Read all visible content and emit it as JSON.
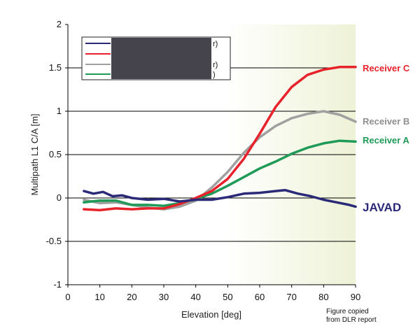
{
  "chart_data": {
    "type": "line",
    "title": "",
    "xlabel": "Elevation [deg]",
    "ylabel": "Multipath L1 C/A [m]",
    "xlim": [
      0,
      90
    ],
    "ylim": [
      -1,
      2
    ],
    "xticks": [
      0,
      10,
      20,
      30,
      40,
      50,
      60,
      70,
      80,
      90
    ],
    "yticks": [
      2,
      1.5,
      1,
      0.5,
      0,
      -0.5,
      -1
    ],
    "ytick_labels": [
      "2",
      "1.5",
      "1",
      "0.5",
      "0",
      "-0.5",
      "-1"
    ],
    "grid": "horizontal",
    "background_gradient": "#eef2d6",
    "legend": {
      "placement": "top-left",
      "visible_fragments": [
        "r)",
        "r)",
        ")"
      ],
      "redacted": true
    },
    "series": [
      {
        "name": "JAVAD",
        "color": "#2b2a78",
        "x": [
          5,
          8,
          11,
          14,
          17,
          20,
          25,
          30,
          35,
          40,
          45,
          50,
          55,
          60,
          65,
          68,
          72,
          76,
          80,
          84,
          88,
          90
        ],
        "y": [
          0.08,
          0.05,
          0.07,
          0.02,
          0.03,
          0.0,
          -0.02,
          -0.01,
          -0.04,
          -0.02,
          -0.02,
          0.01,
          0.05,
          0.06,
          0.08,
          0.09,
          0.05,
          0.02,
          -0.02,
          -0.05,
          -0.08,
          -0.1
        ]
      },
      {
        "name": "Receiver C",
        "color": "#e8222b",
        "x": [
          5,
          10,
          15,
          20,
          25,
          30,
          35,
          40,
          45,
          50,
          55,
          60,
          65,
          70,
          75,
          80,
          85,
          90
        ],
        "y": [
          -0.13,
          -0.14,
          -0.12,
          -0.13,
          -0.12,
          -0.12,
          -0.07,
          0.0,
          0.08,
          0.22,
          0.45,
          0.74,
          1.05,
          1.28,
          1.42,
          1.48,
          1.51,
          1.51
        ]
      },
      {
        "name": "Receiver B",
        "color": "#a0a0a0",
        "x": [
          5,
          10,
          15,
          20,
          25,
          30,
          35,
          40,
          45,
          50,
          55,
          60,
          65,
          70,
          75,
          80,
          85,
          90
        ],
        "y": [
          -0.02,
          -0.06,
          -0.05,
          -0.08,
          -0.11,
          -0.13,
          -0.1,
          -0.03,
          0.12,
          0.3,
          0.52,
          0.7,
          0.83,
          0.92,
          0.97,
          1.0,
          0.96,
          0.88
        ]
      },
      {
        "name": "Receiver A",
        "color": "#1f9a57",
        "x": [
          5,
          10,
          15,
          20,
          25,
          30,
          35,
          40,
          45,
          50,
          55,
          60,
          65,
          70,
          75,
          80,
          85,
          90
        ],
        "y": [
          -0.05,
          -0.03,
          -0.03,
          -0.08,
          -0.08,
          -0.09,
          -0.06,
          -0.01,
          0.05,
          0.14,
          0.24,
          0.34,
          0.42,
          0.51,
          0.58,
          0.63,
          0.66,
          0.65
        ]
      }
    ],
    "annotations": [
      {
        "text": "Receiver C",
        "color": "#e8222b",
        "series": "Receiver C"
      },
      {
        "text": "Receiver B",
        "color": "#8f8f8f",
        "series": "Receiver B"
      },
      {
        "text": "Receiver A",
        "color": "#1f9a57",
        "series": "Receiver A"
      },
      {
        "text": "JAVAD",
        "color": "#2b2a78",
        "series": "JAVAD"
      }
    ]
  },
  "note": {
    "line1": "Figure copied",
    "line2": "from DLR report"
  }
}
